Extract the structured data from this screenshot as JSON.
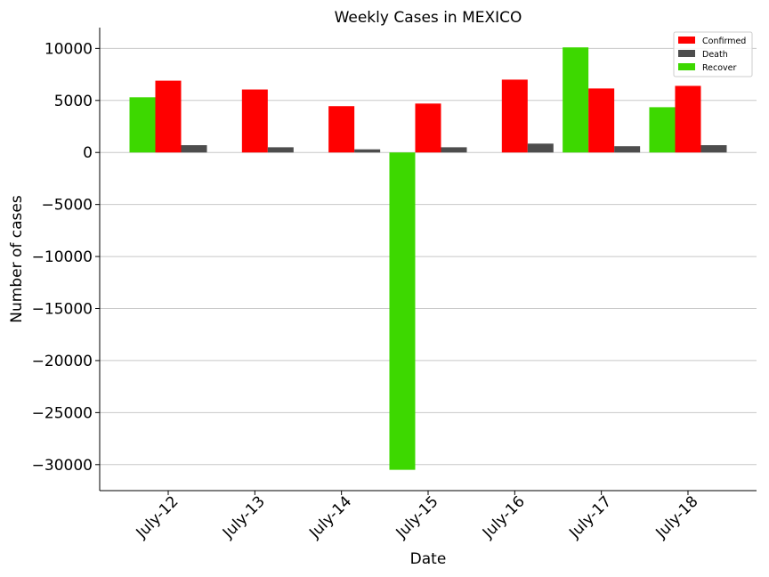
{
  "chart_data": {
    "type": "bar",
    "title": "Weekly Cases in MEXICO",
    "xlabel": "Date",
    "ylabel": "Number of cases",
    "categories": [
      "July-12",
      "July-13",
      "July-14",
      "July-15",
      "July-16",
      "July-17",
      "July-18"
    ],
    "series": [
      {
        "name": "Recover",
        "color": "#3dd800",
        "values": [
          5300,
          0,
          0,
          -30500,
          0,
          10100,
          4350
        ]
      },
      {
        "name": "Confirmed",
        "color": "#ff0000",
        "values": [
          6900,
          6050,
          4450,
          4700,
          7000,
          6150,
          6400
        ]
      },
      {
        "name": "Death",
        "color": "#4d4d4d",
        "values": [
          700,
          500,
          300,
          500,
          850,
          600,
          700
        ]
      }
    ],
    "legend_order": [
      "Confirmed",
      "Death",
      "Recover"
    ],
    "yticks": [
      10000,
      5000,
      0,
      -5000,
      -10000,
      -15000,
      -20000,
      -25000,
      -30000
    ],
    "ylim": [
      -32500,
      12000
    ],
    "grid": "y",
    "legend_position": "top-right"
  }
}
